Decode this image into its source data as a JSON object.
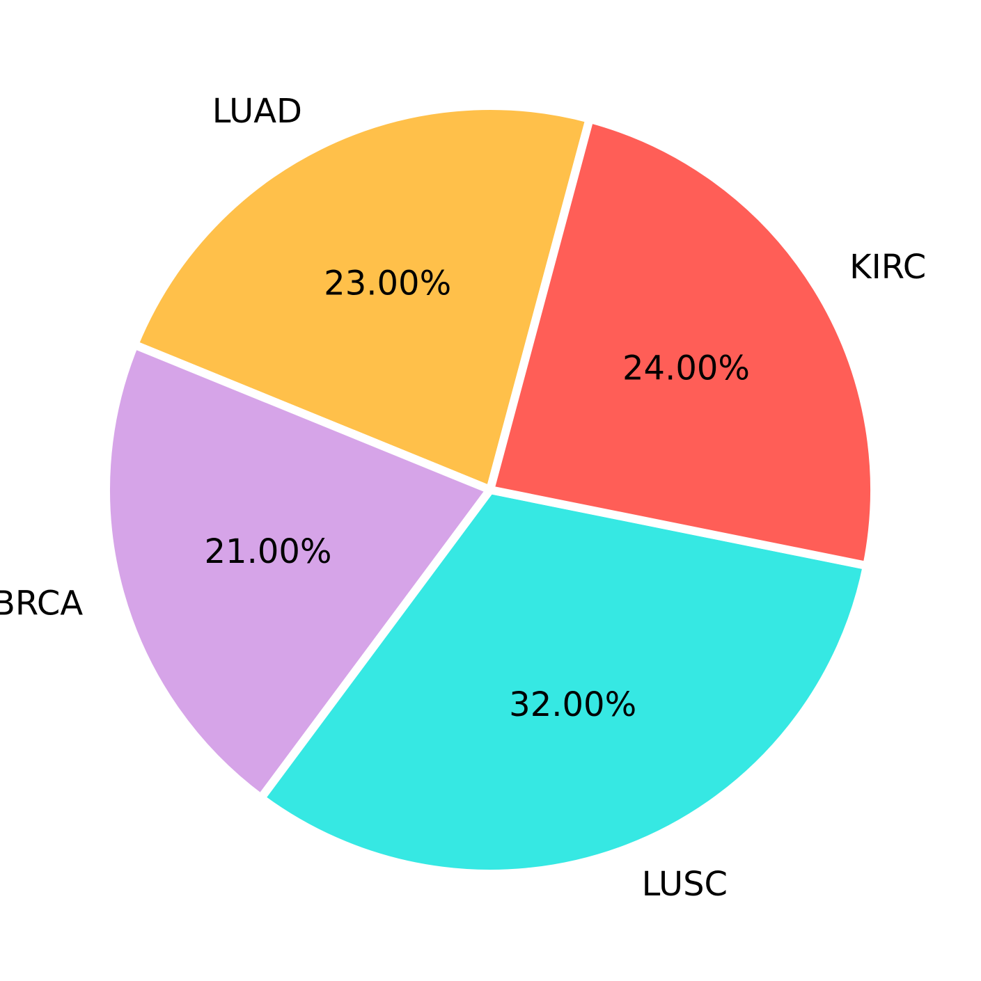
{
  "chart_data": {
    "type": "pie",
    "title": "",
    "categories": [
      "LUAD",
      "BRCA",
      "LUSC",
      "KIRC"
    ],
    "values": [
      23,
      21,
      32,
      24
    ],
    "percent_labels": [
      "23.00%",
      "21.00%",
      "32.00%",
      "24.00%"
    ],
    "colors": [
      "#FFC04A",
      "#D6A4E8",
      "#36E8E3",
      "#FF5E57"
    ],
    "legend": "none",
    "slice_separator_color": "#FFFFFF"
  }
}
